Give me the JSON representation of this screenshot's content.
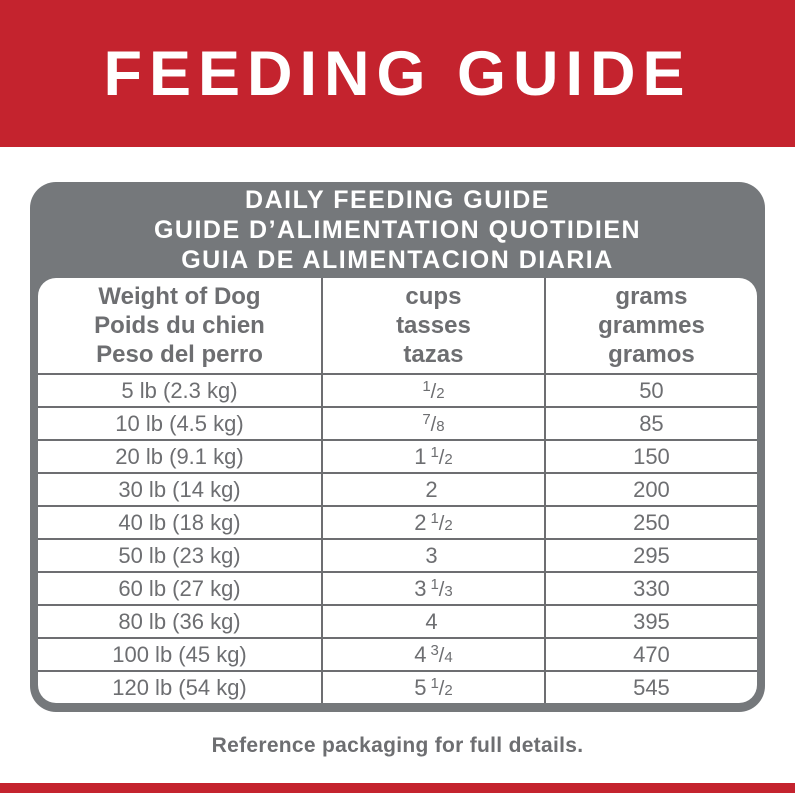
{
  "colors": {
    "accent_red": "#C4232E",
    "panel_gray": "#75787B",
    "text_gray": "#6D6E71"
  },
  "banner": {
    "title": "FEEDING GUIDE"
  },
  "guide": {
    "title_lines": [
      "DAILY FEEDING GUIDE",
      "GUIDE D’ALIMENTATION QUOTIDIEN",
      "GUIA DE ALIMENTACION DIARIA"
    ],
    "columns": [
      {
        "line1": "Weight of Dog",
        "line2": "Poids du chien",
        "line3": "Peso del perro"
      },
      {
        "line1": "cups",
        "line2": "tasses",
        "line3": "tazas"
      },
      {
        "line1": "grams",
        "line2": "grammes",
        "line3": "gramos"
      }
    ],
    "rows": [
      {
        "weight": "5 lb (2.3 kg)",
        "cups_whole": "",
        "cups_num": "1",
        "cups_slash": "/",
        "cups_den": "2",
        "grams": "50"
      },
      {
        "weight": "10 lb (4.5 kg)",
        "cups_whole": "",
        "cups_num": "7",
        "cups_slash": "/",
        "cups_den": "8",
        "grams": "85"
      },
      {
        "weight": "20 lb (9.1 kg)",
        "cups_whole": "1",
        "cups_num": "1",
        "cups_slash": "/",
        "cups_den": "2",
        "grams": "150"
      },
      {
        "weight": "30 lb (14 kg)",
        "cups_whole": "2",
        "cups_num": "",
        "cups_slash": "",
        "cups_den": "",
        "grams": "200"
      },
      {
        "weight": "40 lb (18 kg)",
        "cups_whole": "2",
        "cups_num": "1",
        "cups_slash": "/",
        "cups_den": "2",
        "grams": "250"
      },
      {
        "weight": "50 lb (23 kg)",
        "cups_whole": "3",
        "cups_num": "",
        "cups_slash": "",
        "cups_den": "",
        "grams": "295"
      },
      {
        "weight": "60 lb (27 kg)",
        "cups_whole": "3",
        "cups_num": "1",
        "cups_slash": "/",
        "cups_den": "3",
        "grams": "330"
      },
      {
        "weight": "80 lb (36 kg)",
        "cups_whole": "4",
        "cups_num": "",
        "cups_slash": "",
        "cups_den": "",
        "grams": "395"
      },
      {
        "weight": "100 lb (45 kg)",
        "cups_whole": "4",
        "cups_num": "3",
        "cups_slash": "/",
        "cups_den": "4",
        "grams": "470"
      },
      {
        "weight": "120 lb (54 kg)",
        "cups_whole": "5",
        "cups_num": "1",
        "cups_slash": "/",
        "cups_den": "2",
        "grams": "545"
      }
    ]
  },
  "footer": {
    "note": "Reference packaging for full details."
  }
}
